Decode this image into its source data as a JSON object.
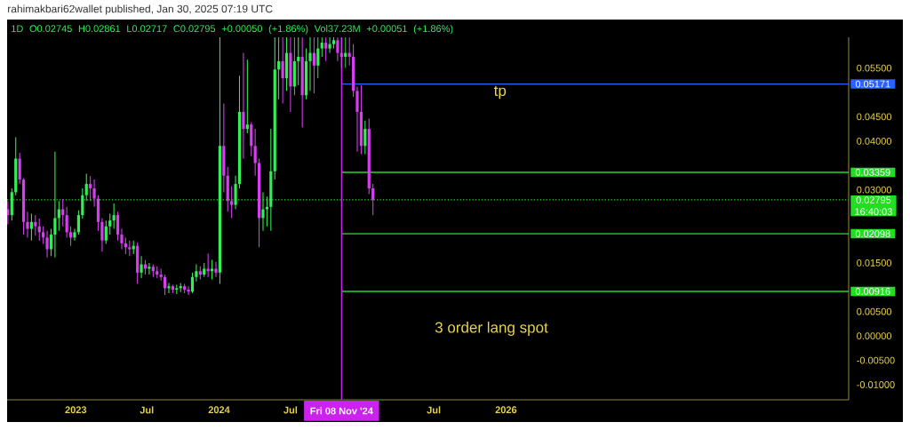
{
  "chart_data": {
    "type": "candlestick",
    "subtitle": "rahimakbari62wallet published, Jan 30, 2025 07:19 UTC",
    "title": "1D O0.02745 H0.02861 L0.02717 C0.02795 +0.00050 (+1.86%) Vol37.23M +0.00051 (+1.86%)",
    "x": [
      "2022-07-12",
      "2022-07-22",
      "2022-08-01",
      "2022-08-11",
      "2022-08-21",
      "2022-08-31",
      "2022-09-10",
      "2022-09-20",
      "2022-09-30",
      "2022-10-10",
      "2022-10-20",
      "2022-10-30",
      "2022-11-09",
      "2022-11-19",
      "2022-11-29",
      "2022-12-09",
      "2022-12-19",
      "2022-12-29",
      "2023-01-08",
      "2023-01-18",
      "2023-01-28",
      "2023-02-07",
      "2023-02-17",
      "2023-02-27",
      "2023-03-09",
      "2023-03-19",
      "2023-03-29",
      "2023-04-08",
      "2023-04-18",
      "2023-04-28",
      "2023-05-08",
      "2023-05-18",
      "2023-05-28",
      "2023-06-07",
      "2023-06-17",
      "2023-06-27",
      "2023-07-07",
      "2023-07-17",
      "2023-07-27",
      "2023-08-06",
      "2023-08-16",
      "2023-08-26",
      "2023-09-05",
      "2023-09-15",
      "2023-09-25",
      "2023-10-05",
      "2023-10-15",
      "2023-10-25",
      "2023-11-04",
      "2023-11-14",
      "2023-11-24",
      "2023-12-04",
      "2023-12-14",
      "2023-12-24",
      "2024-01-03",
      "2024-01-13",
      "2024-01-23",
      "2024-02-02",
      "2024-02-12",
      "2024-02-22",
      "2024-03-03",
      "2024-03-13",
      "2024-03-23",
      "2024-04-02",
      "2024-04-12",
      "2024-04-22",
      "2024-05-02",
      "2024-05-12",
      "2024-05-22",
      "2024-06-01",
      "2024-06-11",
      "2024-06-21",
      "2024-07-01",
      "2024-07-11",
      "2024-07-21",
      "2024-07-31",
      "2024-08-10",
      "2024-08-20",
      "2024-08-30",
      "2024-09-09",
      "2024-09-19",
      "2024-09-29",
      "2024-10-09",
      "2024-10-19",
      "2024-10-29",
      "2024-11-08",
      "2024-11-18",
      "2024-11-28",
      "2024-12-08",
      "2024-12-18",
      "2024-12-28",
      "2025-01-07",
      "2025-01-17",
      "2025-01-27"
    ],
    "ohlc": [
      [
        0.026,
        0.0277,
        0.0229,
        0.0248
      ],
      [
        0.0248,
        0.0303,
        0.0237,
        0.0295
      ],
      [
        0.0295,
        0.0408,
        0.0289,
        0.0364
      ],
      [
        0.0364,
        0.0376,
        0.0312,
        0.0321
      ],
      [
        0.0321,
        0.0324,
        0.0208,
        0.0234
      ],
      [
        0.0234,
        0.0255,
        0.0202,
        0.022
      ],
      [
        0.022,
        0.0251,
        0.0196,
        0.0234
      ],
      [
        0.0234,
        0.0248,
        0.0206,
        0.0225
      ],
      [
        0.0225,
        0.0241,
        0.0196,
        0.0213
      ],
      [
        0.0213,
        0.0225,
        0.0189,
        0.0202
      ],
      [
        0.0202,
        0.0216,
        0.0161,
        0.0178
      ],
      [
        0.0178,
        0.022,
        0.0164,
        0.0208
      ],
      [
        0.0208,
        0.0378,
        0.0161,
        0.0242
      ],
      [
        0.0242,
        0.0277,
        0.0216,
        0.026
      ],
      [
        0.026,
        0.0281,
        0.0225,
        0.0248
      ],
      [
        0.0248,
        0.0265,
        0.0202,
        0.0213
      ],
      [
        0.0213,
        0.0225,
        0.0185,
        0.0202
      ],
      [
        0.0202,
        0.022,
        0.0196,
        0.0213
      ],
      [
        0.0213,
        0.0258,
        0.0208,
        0.0248
      ],
      [
        0.0248,
        0.0303,
        0.0241,
        0.0289
      ],
      [
        0.0289,
        0.0333,
        0.0277,
        0.0312
      ],
      [
        0.0312,
        0.0328,
        0.0277,
        0.0303
      ],
      [
        0.0303,
        0.0321,
        0.0265,
        0.0282
      ],
      [
        0.0282,
        0.0289,
        0.0216,
        0.0234
      ],
      [
        0.0234,
        0.0242,
        0.0173,
        0.0196
      ],
      [
        0.0196,
        0.0237,
        0.0189,
        0.0225
      ],
      [
        0.0225,
        0.0251,
        0.0208,
        0.0237
      ],
      [
        0.0237,
        0.0272,
        0.022,
        0.0248
      ],
      [
        0.0248,
        0.0255,
        0.0196,
        0.0208
      ],
      [
        0.0208,
        0.022,
        0.0178,
        0.019
      ],
      [
        0.019,
        0.0202,
        0.0168,
        0.0182
      ],
      [
        0.0182,
        0.0196,
        0.0164,
        0.0178
      ],
      [
        0.0178,
        0.0196,
        0.0168,
        0.0185
      ],
      [
        0.0185,
        0.0192,
        0.0107,
        0.013
      ],
      [
        0.013,
        0.0164,
        0.0119,
        0.0147
      ],
      [
        0.0147,
        0.0156,
        0.0126,
        0.0138
      ],
      [
        0.0138,
        0.015,
        0.0126,
        0.0142
      ],
      [
        0.0142,
        0.0147,
        0.0121,
        0.0133
      ],
      [
        0.0133,
        0.0143,
        0.0119,
        0.0126
      ],
      [
        0.0126,
        0.0138,
        0.0114,
        0.0121
      ],
      [
        0.0121,
        0.0126,
        0.0084,
        0.0098
      ],
      [
        0.0098,
        0.0109,
        0.0088,
        0.0102
      ],
      [
        0.0102,
        0.0105,
        0.0088,
        0.0095
      ],
      [
        0.0095,
        0.0105,
        0.0086,
        0.0098
      ],
      [
        0.0098,
        0.0109,
        0.009,
        0.0102
      ],
      [
        0.0102,
        0.0107,
        0.0088,
        0.0095
      ],
      [
        0.0095,
        0.0102,
        0.0084,
        0.0091
      ],
      [
        0.0091,
        0.013,
        0.0088,
        0.0121
      ],
      [
        0.0121,
        0.0147,
        0.0112,
        0.0133
      ],
      [
        0.0133,
        0.0143,
        0.0116,
        0.0126
      ],
      [
        0.0126,
        0.015,
        0.0121,
        0.0138
      ],
      [
        0.0138,
        0.0169,
        0.0121,
        0.0133
      ],
      [
        0.0133,
        0.0156,
        0.0116,
        0.0138
      ],
      [
        0.0138,
        0.0152,
        0.0121,
        0.013
      ],
      [
        0.013,
        0.0613,
        0.0107,
        0.039
      ],
      [
        0.039,
        0.0477,
        0.0295,
        0.0329
      ],
      [
        0.0329,
        0.0347,
        0.0255,
        0.0277
      ],
      [
        0.0277,
        0.0307,
        0.0242,
        0.0269
      ],
      [
        0.0269,
        0.0329,
        0.026,
        0.0312
      ],
      [
        0.0312,
        0.0534,
        0.0303,
        0.046
      ],
      [
        0.046,
        0.0581,
        0.0364,
        0.0425
      ],
      [
        0.0425,
        0.0567,
        0.0416,
        0.0434
      ],
      [
        0.0434,
        0.0439,
        0.0369,
        0.039
      ],
      [
        0.039,
        0.0425,
        0.0329,
        0.0355
      ],
      [
        0.0355,
        0.0364,
        0.0182,
        0.0242
      ],
      [
        0.0242,
        0.0295,
        0.0216,
        0.026
      ],
      [
        0.026,
        0.0286,
        0.0225,
        0.0265
      ],
      [
        0.0265,
        0.0425,
        0.0216,
        0.0338
      ],
      [
        0.0338,
        0.0613,
        0.0321,
        0.0547
      ],
      [
        0.0547,
        0.0613,
        0.0486,
        0.0564
      ],
      [
        0.0564,
        0.0613,
        0.0477,
        0.0529
      ],
      [
        0.0529,
        0.0613,
        0.0503,
        0.0581
      ],
      [
        0.0581,
        0.0613,
        0.046,
        0.0512
      ],
      [
        0.0512,
        0.0613,
        0.0494,
        0.0564
      ],
      [
        0.0564,
        0.0613,
        0.0515,
        0.0573
      ],
      [
        0.0573,
        0.0613,
        0.0428,
        0.0494
      ],
      [
        0.0494,
        0.059,
        0.0486,
        0.0564
      ],
      [
        0.0564,
        0.0613,
        0.0503,
        0.0581
      ],
      [
        0.0581,
        0.0613,
        0.0498,
        0.0555
      ],
      [
        0.0555,
        0.0613,
        0.0529,
        0.059
      ],
      [
        0.059,
        0.0613,
        0.0573,
        0.0602
      ],
      [
        0.0602,
        0.0613,
        0.0564,
        0.059
      ],
      [
        0.059,
        0.0613,
        0.0581,
        0.0599
      ],
      [
        0.0599,
        0.0613,
        0.059,
        0.0607
      ],
      [
        0.0607,
        0.0613,
        0.0564,
        0.0581
      ],
      [
        0.0581,
        0.0613,
        0.055,
        0.0573
      ],
      [
        0.0573,
        0.0613,
        0.055,
        0.0581
      ],
      [
        0.0581,
        0.0613,
        0.0555,
        0.0573
      ],
      [
        0.0573,
        0.0599,
        0.0491,
        0.0503
      ],
      [
        0.0503,
        0.0512,
        0.0378,
        0.046
      ],
      [
        0.046,
        0.0515,
        0.0373,
        0.039
      ],
      [
        0.039,
        0.0442,
        0.0373,
        0.0425
      ],
      [
        0.0425,
        0.0446,
        0.0291,
        0.0303
      ],
      [
        0.0303,
        0.0312,
        0.0248,
        0.02795
      ]
    ],
    "colors": [
      "#d63ef0",
      "#33ee55",
      "#33ee55",
      "#d63ef0",
      "#d63ef0",
      "#d63ef0",
      "#33ee55",
      "#d63ef0",
      "#d63ef0",
      "#d63ef0",
      "#d63ef0",
      "#33ee55",
      "#33ee55",
      "#33ee55",
      "#d63ef0",
      "#d63ef0",
      "#d63ef0",
      "#33ee55",
      "#33ee55",
      "#33ee55",
      "#33ee55",
      "#d63ef0",
      "#d63ef0",
      "#d63ef0",
      "#d63ef0",
      "#33ee55",
      "#33ee55",
      "#33ee55",
      "#d63ef0",
      "#d63ef0",
      "#d63ef0",
      "#d63ef0",
      "#33ee55",
      "#d63ef0",
      "#33ee55",
      "#d63ef0",
      "#33ee55",
      "#d63ef0",
      "#d63ef0",
      "#d63ef0",
      "#d63ef0",
      "#33ee55",
      "#d63ef0",
      "#33ee55",
      "#33ee55",
      "#d63ef0",
      "#d63ef0",
      "#33ee55",
      "#33ee55",
      "#d63ef0",
      "#33ee55",
      "#d63ef0",
      "#33ee55",
      "#d63ef0",
      "#33ee55",
      "#d63ef0",
      "#d63ef0",
      "#d63ef0",
      "#33ee55",
      "#33ee55",
      "#d63ef0",
      "#33ee55",
      "#d63ef0",
      "#d63ef0",
      "#d63ef0",
      "#33ee55",
      "#33ee55",
      "#33ee55",
      "#33ee55",
      "#33ee55",
      "#d63ef0",
      "#33ee55",
      "#d63ef0",
      "#33ee55",
      "#33ee55",
      "#d63ef0",
      "#33ee55",
      "#33ee55",
      "#d63ef0",
      "#33ee55",
      "#33ee55",
      "#d63ef0",
      "#33ee55",
      "#33ee55",
      "#d63ef0",
      "#d63ef0",
      "#33ee55",
      "#d63ef0",
      "#d63ef0",
      "#d63ef0",
      "#d63ef0",
      "#33ee55",
      "#d63ef0",
      "#d63ef0"
    ],
    "xlim": [
      "2022-07-10",
      "2028-05-23"
    ],
    "ylim": [
      -0.0131,
      0.0613
    ],
    "xticks": [
      {
        "value": "2023-01-01",
        "label": "2023"
      },
      {
        "value": "2023-07-01",
        "label": "Jul"
      },
      {
        "value": "2024-01-01",
        "label": "2024"
      },
      {
        "value": "2024-07-01",
        "label": "Jul"
      },
      {
        "value": "2025-07-01",
        "label": "Jul"
      },
      {
        "value": "2026-01-01",
        "label": "2026"
      }
    ],
    "yticks": [
      {
        "value": 0.055,
        "label": "0.05500"
      },
      {
        "value": 0.045,
        "label": "0.04500"
      },
      {
        "value": 0.04,
        "label": "0.04000"
      },
      {
        "value": 0.03,
        "label": "0.03000"
      },
      {
        "value": 0.015,
        "label": "0.01500"
      },
      {
        "value": 0.005,
        "label": "0.00500"
      },
      {
        "value": 0,
        "label": "0.00000"
      },
      {
        "value": -0.005,
        "label": "-0.00500"
      },
      {
        "value": -0.01,
        "label": "-0.01000"
      }
    ],
    "series": [
      {
        "type": "line",
        "color": "#2962ff",
        "x": [
          "2024-11-08",
          "2028-05-23"
        ],
        "values": [
          0.05171,
          0.05171
        ],
        "value_labels": [
          null,
          "0.05171"
        ]
      },
      {
        "type": "line",
        "color": "#22dd22",
        "x": [
          "2024-11-08",
          "2028-05-23"
        ],
        "values": [
          0.03359,
          0.03359
        ],
        "value_labels": [
          null,
          "0.03359"
        ]
      },
      {
        "type": "line",
        "color": "#22dd22",
        "x": [
          "2024-11-08",
          "2028-05-23"
        ],
        "values": [
          0.02098,
          0.02098
        ],
        "value_labels": [
          null,
          "0.02098"
        ]
      },
      {
        "type": "line",
        "color": "#22dd22",
        "x": [
          "2024-11-08",
          "2028-05-23"
        ],
        "values": [
          0.00916,
          0.00916
        ],
        "value_labels": [
          null,
          "0.00916"
        ]
      }
    ],
    "ref_lines": [
      {
        "axis": "y",
        "value": 0.02795,
        "label": "0.02795 16:40:03",
        "color": "#22dd22",
        "line_style": "dotted"
      },
      {
        "axis": "x",
        "value": "2024-11-08",
        "label": "Fri 08 Nov '24",
        "color": "#cc22ee"
      }
    ],
    "annotations": [
      "3 order lang spot",
      {
        "text": "tp",
        "x": "2025-12-17",
        "y": 0.05171
      }
    ]
  }
}
